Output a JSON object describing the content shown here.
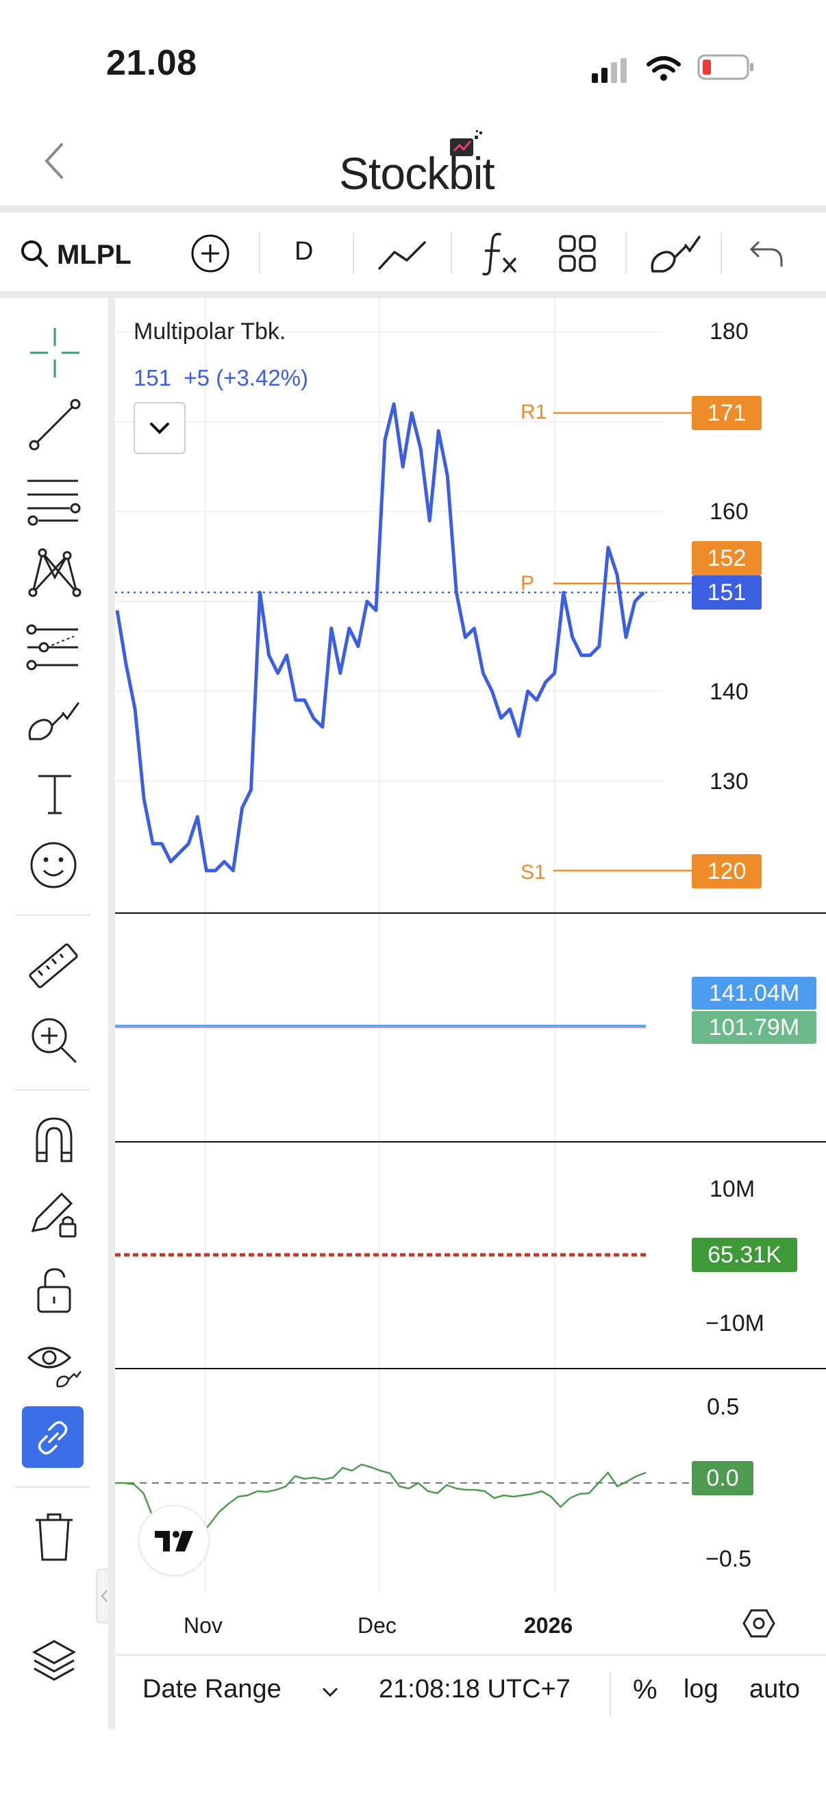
{
  "status_bar": {
    "time": "21.08"
  },
  "header": {
    "app_name": "Stockbit"
  },
  "toolbar": {
    "symbol": "MLPL",
    "interval": "D"
  },
  "chart": {
    "title": "Multipolar Tbk.",
    "price_line": "151  +5 (+3.42%)",
    "y_ticks": [
      "180",
      "160",
      "140",
      "130"
    ],
    "pivot_labels": {
      "r1": "R1",
      "p": "P",
      "s1": "S1"
    },
    "tags": {
      "r1": "171",
      "p": "152",
      "last": "151",
      "s1": "120"
    },
    "colors": {
      "price": "#3b5fe0",
      "pivot": "#ee8c2a",
      "grid": "#f1f1f1"
    }
  },
  "chart_data": {
    "type": "line",
    "title": "Multipolar Tbk.",
    "x_ticks": [
      "Nov",
      "Dec",
      "2026"
    ],
    "ylim": [
      120,
      185
    ],
    "series": [
      {
        "name": "Multipolar Tbk.",
        "values": [
          149,
          143,
          138,
          128,
          123,
          123,
          121,
          122,
          123,
          126,
          120,
          120,
          121,
          120,
          127,
          129,
          151,
          144,
          142,
          144,
          139,
          139,
          137,
          136,
          147,
          142,
          147,
          145,
          150,
          149,
          168,
          172,
          165,
          171,
          167,
          159,
          169,
          164,
          151,
          146,
          147,
          142,
          140,
          137,
          138,
          135,
          140,
          139,
          141,
          142,
          151,
          146,
          144,
          144,
          145,
          156,
          153,
          146,
          150,
          151
        ],
        "color": "#3b5fe0"
      }
    ],
    "levels": {
      "R1": 171,
      "P": 152,
      "S1": 120,
      "last": 151
    }
  },
  "panel2": {
    "tag1": "141.04M",
    "tag2": "101.79M"
  },
  "panel3": {
    "tick_top": "10M",
    "tick_bottom": "−10M",
    "tag": "65.31K"
  },
  "panel4": {
    "tick_top": "0.5",
    "tick_bottom": "−0.5",
    "tag": "0.0"
  },
  "x_axis": {
    "labels": [
      "Nov",
      "Dec",
      "2026"
    ]
  },
  "bottom_bar": {
    "date_range": "Date Range",
    "clock": "21:08:18 UTC+7",
    "percent": "%",
    "log": "log",
    "auto": "auto"
  }
}
